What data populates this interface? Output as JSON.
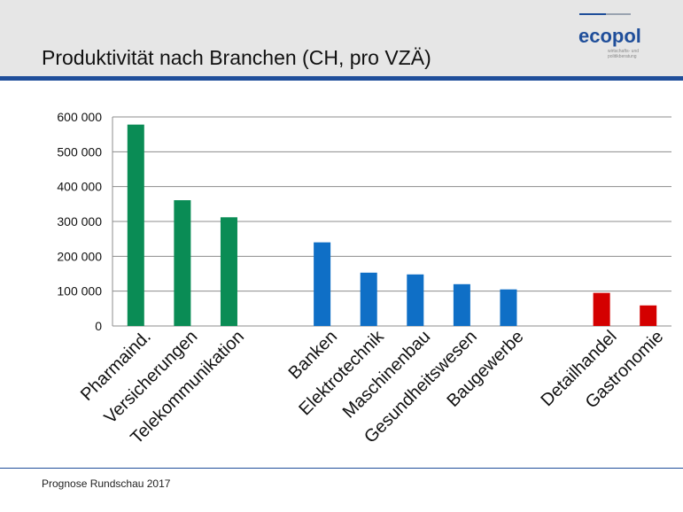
{
  "header": {
    "title": "Produktivität nach Branchen (CH, pro VZÄ)",
    "logo": "ecopol",
    "logo_sub1": "wirtschafts- und",
    "logo_sub2": "politikberatung"
  },
  "footer": {
    "source": "Prognose Rundschau 2017"
  },
  "colors": {
    "green": "#0a8c55",
    "blue": "#0f6fc6",
    "red": "#d40000",
    "accent": "#1f4e9a"
  },
  "chart_data": {
    "type": "bar",
    "title": "Produktivität nach Branchen (CH, pro VZÄ)",
    "xlabel": "",
    "ylabel": "",
    "ylim": [
      0,
      600000
    ],
    "yticks": [
      0,
      100000,
      200000,
      300000,
      400000,
      500000,
      600000
    ],
    "ytick_labels": [
      "0",
      "100 000",
      "200 000",
      "300 000",
      "400 000",
      "500 000",
      "600 000"
    ],
    "grid": true,
    "legend": "none",
    "categories": [
      "Pharmaind.",
      "Versicherungen",
      "Telekommunikation",
      "",
      "Banken",
      "Elektrotechnik",
      "Maschinenbau",
      "Gesundheitswesen",
      "Baugewerbe",
      "",
      "Detailhandel",
      "Gastronomie"
    ],
    "values": [
      578000,
      361000,
      312000,
      null,
      240000,
      153000,
      148000,
      120000,
      105000,
      null,
      95000,
      59000
    ],
    "bar_colors": [
      "green",
      "green",
      "green",
      null,
      "blue",
      "blue",
      "blue",
      "blue",
      "blue",
      null,
      "red",
      "red"
    ]
  }
}
